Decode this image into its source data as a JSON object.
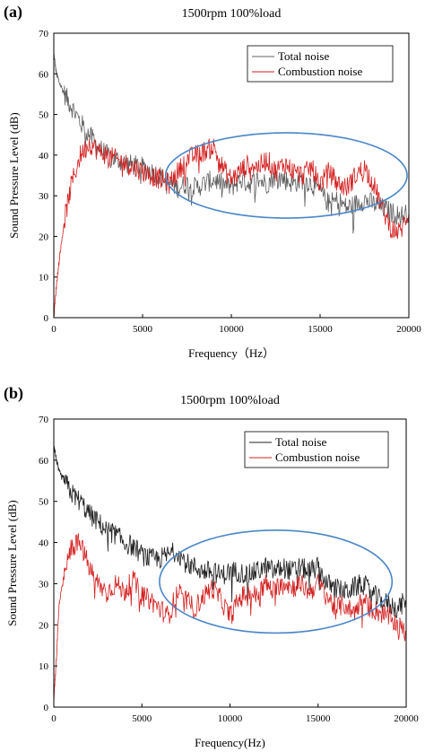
{
  "chart_data": [
    {
      "type": "line",
      "panel_label": "(a)",
      "title": "1500rpm 100%load",
      "xlabel": "Frequency（Hz）",
      "ylabel": "Sound Pressure Level (dB)",
      "xlim": [
        0,
        20000
      ],
      "ylim": [
        0,
        70
      ],
      "xticks": [
        "0",
        "5000",
        "10000",
        "15000",
        "20000"
      ],
      "yticks": [
        "0",
        "10",
        "20",
        "30",
        "40",
        "50",
        "60",
        "70"
      ],
      "legend_position": "top-right",
      "annotation": {
        "type": "ellipse",
        "cx": 13100,
        "cy": 35,
        "rx": 6800,
        "ry": 10.5,
        "color": "#4a86c8"
      },
      "series": [
        {
          "name": "Total noise",
          "color": "#606060",
          "x": [
            0,
            150,
            300,
            600,
            1000,
            1500,
            2000,
            2500,
            3000,
            3500,
            4000,
            4500,
            5000,
            5500,
            6000,
            6500,
            7000,
            7500,
            8000,
            8500,
            9000,
            9500,
            10000,
            10500,
            11000,
            11500,
            12000,
            12500,
            13000,
            13500,
            14000,
            14500,
            15000,
            15500,
            16000,
            16500,
            17000,
            17500,
            18000,
            18500,
            19000,
            19500,
            20000
          ],
          "y": [
            65,
            60,
            58,
            55,
            52,
            48,
            45,
            42,
            40,
            39,
            38,
            37.5,
            37,
            36,
            35,
            33,
            32,
            33,
            32,
            33,
            34,
            33,
            32,
            34,
            33,
            34,
            33,
            35,
            34,
            33,
            34,
            33,
            31,
            28,
            29,
            27,
            28,
            29,
            28,
            27,
            26,
            25,
            26
          ]
        },
        {
          "name": "Combustion noise",
          "color": "#d42020",
          "x": [
            0,
            150,
            300,
            600,
            1000,
            1500,
            2000,
            2500,
            3000,
            3500,
            4000,
            4500,
            5000,
            5500,
            6000,
            6500,
            7000,
            7500,
            8000,
            8500,
            9000,
            9500,
            10000,
            10500,
            11000,
            11500,
            12000,
            12500,
            13000,
            13500,
            14000,
            14500,
            15000,
            15500,
            16000,
            16500,
            17000,
            17500,
            18000,
            18500,
            19000,
            19500,
            20000
          ],
          "y": [
            0,
            8,
            14,
            24,
            33,
            40,
            43,
            41,
            40,
            39,
            38,
            37,
            36,
            35,
            34,
            33,
            36,
            39,
            40,
            41,
            42,
            37,
            34,
            36,
            38,
            37,
            39,
            36,
            38,
            36,
            35,
            37,
            33,
            36,
            33,
            32,
            35,
            37,
            33,
            27,
            22,
            21,
            26
          ]
        }
      ]
    },
    {
      "type": "line",
      "panel_label": "(b)",
      "title": "1500rpm 100%load",
      "xlabel": "Frequency(Hz)",
      "ylabel": "Sound Pressure Level (dB)",
      "xlim": [
        0,
        20000
      ],
      "ylim": [
        0,
        70
      ],
      "xticks": [
        "0",
        "5000",
        "10000",
        "15000",
        "20000"
      ],
      "yticks": [
        "0",
        "10",
        "20",
        "30",
        "40",
        "50",
        "60",
        "70"
      ],
      "legend_position": "top-right",
      "annotation": {
        "type": "ellipse",
        "cx": 12600,
        "cy": 30.5,
        "rx": 6600,
        "ry": 12.5,
        "color": "#4a86c8"
      },
      "series": [
        {
          "name": "Total noise",
          "color": "#202020",
          "x": [
            0,
            150,
            300,
            600,
            1000,
            1500,
            2000,
            2500,
            3000,
            3500,
            4000,
            4500,
            5000,
            5500,
            6000,
            6500,
            7000,
            7500,
            8000,
            8500,
            9000,
            9500,
            10000,
            10500,
            11000,
            11500,
            12000,
            12500,
            13000,
            13500,
            14000,
            14500,
            15000,
            15500,
            16000,
            16500,
            17000,
            17500,
            18000,
            18500,
            19000,
            19500,
            20000
          ],
          "y": [
            64,
            60,
            57,
            55,
            52,
            50,
            47,
            45,
            43,
            42,
            40,
            39,
            37,
            36,
            36,
            37,
            38,
            35,
            34,
            33,
            33,
            32,
            33,
            33,
            32,
            33,
            34,
            33,
            34,
            33,
            34,
            33,
            34,
            30,
            29,
            28,
            29,
            30,
            28,
            26,
            25,
            24,
            26
          ]
        },
        {
          "name": "Combustion noise",
          "color": "#d42020",
          "x": [
            0,
            150,
            300,
            600,
            1000,
            1500,
            2000,
            2500,
            3000,
            3500,
            4000,
            4500,
            5000,
            5500,
            6000,
            6500,
            7000,
            7500,
            8000,
            8500,
            9000,
            9500,
            10000,
            10500,
            11000,
            11500,
            12000,
            12500,
            13000,
            13500,
            14000,
            14500,
            15000,
            15500,
            16000,
            16500,
            17000,
            17500,
            18000,
            18500,
            19000,
            19500,
            20000
          ],
          "y": [
            2,
            12,
            25,
            32,
            39,
            40,
            34,
            30,
            28,
            30,
            28,
            31,
            27,
            26,
            24,
            22,
            28,
            26,
            24,
            27,
            29,
            26,
            22,
            26,
            28,
            27,
            30,
            28,
            31,
            29,
            30,
            28,
            30,
            27,
            24,
            25,
            23,
            26,
            24,
            23,
            22,
            20,
            18
          ]
        }
      ]
    }
  ]
}
